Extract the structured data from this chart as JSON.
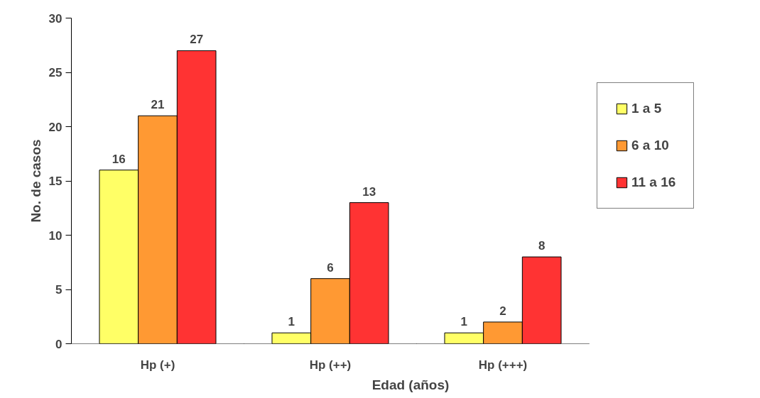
{
  "chart_data": {
    "type": "bar",
    "xlabel": "Edad (años)",
    "ylabel": "No. de casos",
    "categories": [
      "Hp (+)",
      "Hp (++)",
      "Hp (+++)"
    ],
    "series": [
      {
        "name": "1 a 5",
        "color": "#ffff66",
        "values": [
          16,
          1,
          1
        ]
      },
      {
        "name": "6 a 10",
        "color": "#ff9933",
        "values": [
          21,
          6,
          2
        ]
      },
      {
        "name": "11 a 16",
        "color": "#ff3333",
        "values": [
          27,
          13,
          8
        ]
      }
    ],
    "ylim": [
      0,
      30
    ],
    "yticks": [
      0,
      5,
      10,
      15,
      20,
      25,
      30
    ],
    "grid": false,
    "legend": "right",
    "data_labels": true
  }
}
